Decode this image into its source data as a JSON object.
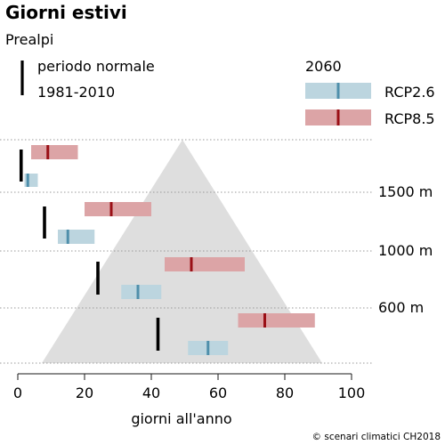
{
  "title": "Giorni estivi",
  "subtitle": "Prealpi",
  "legend": {
    "normal_line1": "periodo normale",
    "normal_line2": "1981-2010",
    "scenario_year": "2060",
    "rcp26": "RCP2.6",
    "rcp85": "RCP8.5"
  },
  "credit": "© scenari climatici CH2018",
  "colors": {
    "normal": "#000000",
    "rcp26_fill": "#bcd5df",
    "rcp26_mark": "#4f8fab",
    "rcp85_fill": "#dca4a6",
    "rcp85_mark": "#9a0f16",
    "mountain": "#dedede",
    "gridline": "#9a9a9a"
  },
  "chart_data": {
    "type": "range-bar",
    "title": "Giorni estivi",
    "subtitle": "Prealpi",
    "xlabel": "giorni all'anno",
    "xlim": [
      0,
      100
    ],
    "xticks": [
      0,
      20,
      40,
      60,
      80,
      100
    ],
    "elevation_labels": [
      "1500 m",
      "1000 m",
      "600 m"
    ],
    "series": [
      {
        "name": "periodo normale 1981-2010",
        "kind": "tick"
      },
      {
        "name": "RCP2.6",
        "kind": "range"
      },
      {
        "name": "RCP8.5",
        "kind": "range"
      }
    ],
    "groups": [
      {
        "normal": 1,
        "rcp26": {
          "low": 2,
          "median": 3,
          "high": 6
        },
        "rcp85": {
          "low": 4,
          "median": 9,
          "high": 18
        }
      },
      {
        "normal": 8,
        "rcp26": {
          "low": 12,
          "median": 15,
          "high": 23
        },
        "rcp85": {
          "low": 20,
          "median": 28,
          "high": 40
        }
      },
      {
        "normal": 24,
        "rcp26": {
          "low": 31,
          "median": 36,
          "high": 43
        },
        "rcp85": {
          "low": 44,
          "median": 52,
          "high": 68
        }
      },
      {
        "normal": 42,
        "rcp26": {
          "low": 51,
          "median": 57,
          "high": 63
        },
        "rcp85": {
          "low": 66,
          "median": 74,
          "high": 89
        }
      }
    ]
  }
}
